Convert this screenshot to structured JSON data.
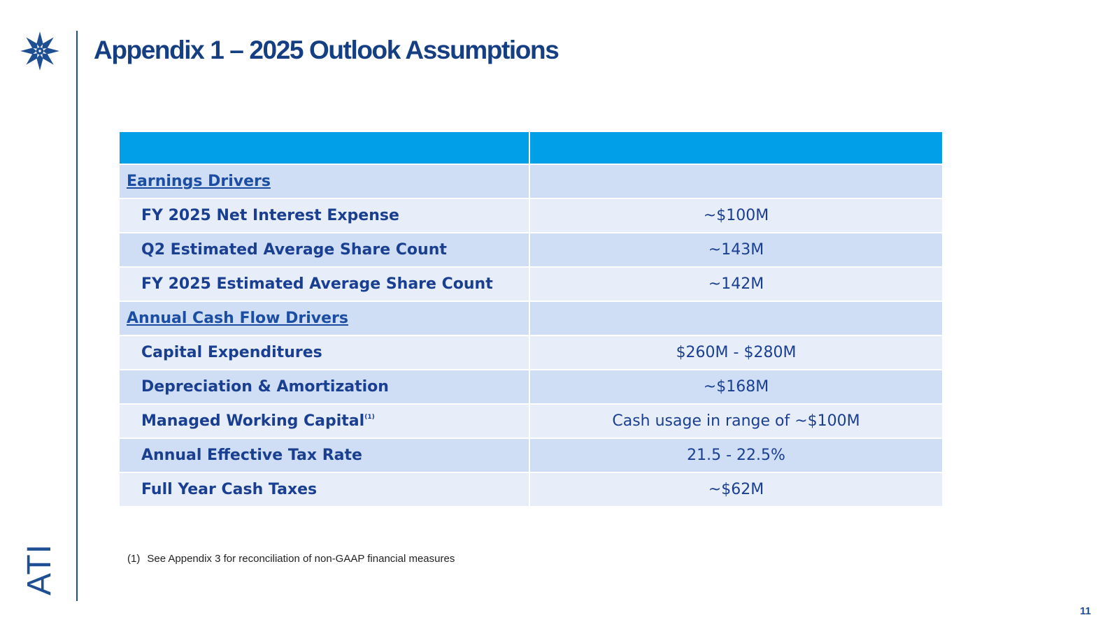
{
  "brand": {
    "logo_icon": "star-snowflake-icon",
    "name": "ATI",
    "color": "#1f4f93"
  },
  "title": "Appendix 1 – 2025 Outlook Assumptions",
  "table": {
    "header": [
      "",
      ""
    ],
    "sections": [
      {
        "label": "Earnings Drivers",
        "rows": [
          {
            "label": "FY 2025 Net Interest Expense",
            "value": "~$100M"
          },
          {
            "label": "Q2 Estimated Average Share Count",
            "value": "~143M"
          },
          {
            "label": "FY 2025 Estimated Average Share Count",
            "value": "~142M"
          }
        ]
      },
      {
        "label": "Annual Cash Flow Drivers",
        "rows": [
          {
            "label": "Capital Expenditures",
            "value": "$260M - $280M"
          },
          {
            "label": "Depreciation & Amortization",
            "value": "~$168M"
          },
          {
            "label": "Managed Working Capital",
            "sup": "(1)",
            "value": "Cash usage in range of ~$100M"
          },
          {
            "label": "Annual Effective Tax Rate",
            "value": "21.5 - 22.5%"
          },
          {
            "label": "Full Year Cash Taxes",
            "value": "~$62M"
          }
        ]
      }
    ]
  },
  "footnote": {
    "num": "(1)",
    "text": "See Appendix 3 for reconciliation of non-GAAP financial measures"
  },
  "page_number": "11",
  "colors": {
    "header": "#009fe8",
    "band_dark": "#cfdef4",
    "band_light": "#e7eefa",
    "text": "#1a3f91"
  }
}
